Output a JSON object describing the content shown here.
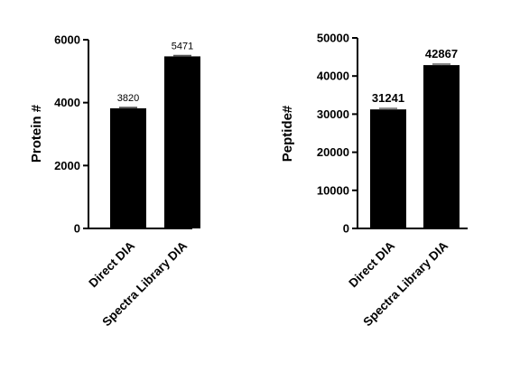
{
  "chart_data": [
    {
      "type": "bar",
      "categories": [
        "Direct DIA",
        "Spectra Library DIA"
      ],
      "values": [
        3820,
        5471
      ],
      "data_labels": [
        "3820",
        "5471"
      ],
      "error_bars": [
        20,
        20
      ],
      "ylabel": "Protein #",
      "ylim": [
        0,
        6000
      ],
      "yticks": [
        "0",
        "2000",
        "4000",
        "6000"
      ],
      "bar_color": "#000000",
      "grid": false
    },
    {
      "type": "bar",
      "categories": [
        "Direct DIA",
        "Spectra Library DIA"
      ],
      "values": [
        31241,
        42867
      ],
      "data_labels": [
        "31241",
        "42867"
      ],
      "error_bars": [
        250,
        250
      ],
      "ylabel": "Peptide#",
      "ylim": [
        0,
        50000
      ],
      "yticks": [
        "0",
        "10000",
        "20000",
        "30000",
        "40000",
        "50000"
      ],
      "bar_color": "#000000",
      "error_bar_color": "#888888",
      "grid": false
    }
  ]
}
